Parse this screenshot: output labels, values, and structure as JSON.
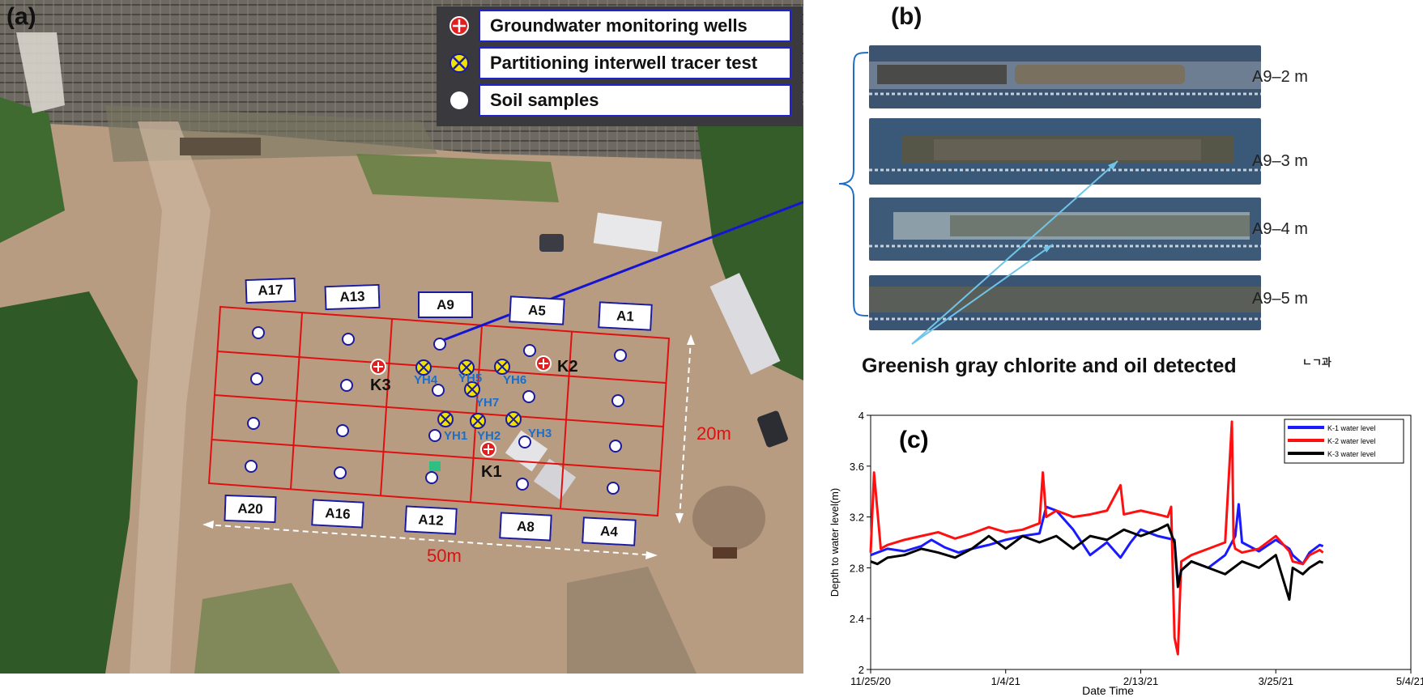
{
  "panels": {
    "a": "(a)",
    "b": "(b)",
    "c": "(c)"
  },
  "legend": {
    "items": [
      {
        "label": "Groundwater monitoring wells",
        "icon": "monitoring-well-icon",
        "color": "#e02020"
      },
      {
        "label": "Partitioning interwell tracer test",
        "icon": "tracer-test-icon",
        "color": "#f2e200"
      },
      {
        "label": "Soil samples",
        "icon": "soil-sample-icon",
        "color": "#ffffff"
      }
    ]
  },
  "grid_labels": {
    "top": [
      "A17",
      "A13",
      "A9",
      "A5",
      "A1"
    ],
    "bottom": [
      "A20",
      "A16",
      "A12",
      "A8",
      "A4"
    ]
  },
  "wells": [
    "K1",
    "K2",
    "K3"
  ],
  "tracer_wells": [
    "YH1",
    "YH2",
    "YH3",
    "YH4",
    "YH5",
    "YH6",
    "YH7"
  ],
  "dimensions": {
    "height": "20m",
    "width": "50m"
  },
  "core_samples": [
    "A9–2 m",
    "A9–3 m",
    "A9–4 m",
    "A9–5 m"
  ],
  "b_caption": "Greenish gray chlorite and oil detected",
  "b_fragment": "ㄴㄱ과",
  "chart_data": {
    "type": "line",
    "xlabel": "Date Time",
    "ylabel": "Depth to water level(m)",
    "x_ticks": [
      "11/25/20",
      "1/4/21",
      "2/13/21",
      "3/25/21",
      "5/4/21"
    ],
    "y_ticks": [
      "2",
      "2.4",
      "2.8",
      "3.2",
      "3.6",
      "4"
    ],
    "ylim": [
      2,
      4
    ],
    "legend_position": "top-right",
    "series": [
      {
        "name": "K-1 water level",
        "color": "#1a1aff",
        "x": [
          0,
          2,
          5,
          10,
          15,
          18,
          22,
          26,
          30,
          35,
          40,
          45,
          50,
          52,
          55,
          60,
          65,
          70,
          74,
          77,
          80,
          85,
          90,
          91,
          92,
          95,
          100,
          105,
          108,
          109,
          110,
          115,
          120,
          124,
          125,
          128,
          130,
          133,
          134
        ],
        "y": [
          2.9,
          2.92,
          2.95,
          2.93,
          2.97,
          3.02,
          2.96,
          2.92,
          2.95,
          2.98,
          3.02,
          3.05,
          3.07,
          3.28,
          3.25,
          3.1,
          2.9,
          3.0,
          2.88,
          3.0,
          3.1,
          3.05,
          3.02,
          2.68,
          2.78,
          2.85,
          2.8,
          2.9,
          3.05,
          3.3,
          3.0,
          2.93,
          3.02,
          2.95,
          2.9,
          2.83,
          2.92,
          2.98,
          2.97
        ]
      },
      {
        "name": "K-2 water level",
        "color": "#ff1010",
        "x": [
          0,
          1,
          3,
          5,
          10,
          15,
          20,
          25,
          30,
          35,
          40,
          45,
          50,
          51,
          52,
          55,
          60,
          65,
          70,
          74,
          75,
          80,
          85,
          88,
          89,
          90,
          91,
          92,
          95,
          100,
          105,
          107,
          107.5,
          108,
          110,
          115,
          120,
          124,
          125,
          128,
          130,
          133,
          134
        ],
        "y": [
          2.92,
          3.55,
          2.95,
          2.98,
          3.02,
          3.05,
          3.08,
          3.03,
          3.07,
          3.12,
          3.08,
          3.1,
          3.15,
          3.55,
          3.2,
          3.25,
          3.2,
          3.22,
          3.25,
          3.45,
          3.22,
          3.25,
          3.22,
          3.2,
          3.28,
          2.25,
          2.12,
          2.85,
          2.9,
          2.95,
          3.0,
          3.95,
          3.0,
          2.95,
          2.92,
          2.95,
          3.05,
          2.93,
          2.85,
          2.83,
          2.9,
          2.94,
          2.92
        ]
      },
      {
        "name": "K-3 water level",
        "color": "#000000",
        "x": [
          0,
          2,
          5,
          10,
          15,
          20,
          25,
          30,
          35,
          40,
          45,
          50,
          55,
          60,
          65,
          70,
          75,
          80,
          85,
          88,
          90,
          91,
          92,
          95,
          100,
          105,
          110,
          115,
          120,
          124,
          125,
          128,
          130,
          133,
          134
        ],
        "y": [
          2.85,
          2.83,
          2.88,
          2.9,
          2.95,
          2.92,
          2.88,
          2.95,
          3.05,
          2.95,
          3.05,
          3.0,
          3.05,
          2.95,
          3.05,
          3.02,
          3.1,
          3.05,
          3.1,
          3.14,
          3.0,
          2.65,
          2.78,
          2.85,
          2.8,
          2.75,
          2.85,
          2.8,
          2.9,
          2.55,
          2.8,
          2.75,
          2.8,
          2.85,
          2.84
        ]
      }
    ]
  }
}
